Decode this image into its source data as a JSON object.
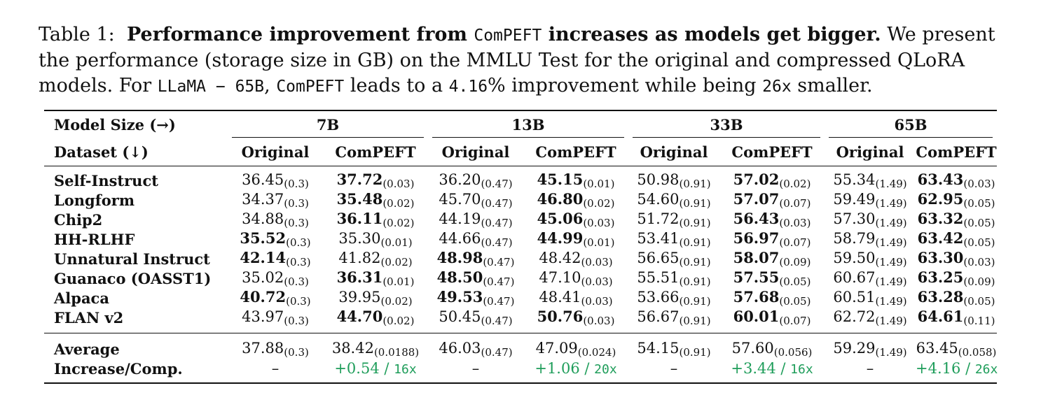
{
  "caption": {
    "label": "Table 1:",
    "title": "Performance improvement from",
    "title_mono": "ComPEFT",
    "title_end": "increases as models get bigger.",
    "body1": "We present the performance (storage size in GB) on the MMLU Test for the original and compressed QLoRA models. For",
    "model_mono": "LLaMA − 65B",
    "comma": ",",
    "compeft_mono": "ComPEFT",
    "body2": "leads to a",
    "pct_mono": "4.16",
    "pct_sign": "%",
    "body3": "improvement while being",
    "factor_mono": "26x",
    "body4": "smaller."
  },
  "header": {
    "model_size": "Model Size (→)",
    "dataset": "Dataset (↓)",
    "sizes": [
      "7B",
      "13B",
      "33B",
      "65B"
    ],
    "original": "Original",
    "compeft": "ComPEFT"
  },
  "rows": [
    {
      "name": "Self-Instruct",
      "cells": [
        {
          "v": "36.45",
          "s": "(0.3)",
          "b": false
        },
        {
          "v": "37.72",
          "s": "(0.03)",
          "b": true
        },
        {
          "v": "36.20",
          "s": "(0.47)",
          "b": false
        },
        {
          "v": "45.15",
          "s": "(0.01)",
          "b": true
        },
        {
          "v": "50.98",
          "s": "(0.91)",
          "b": false
        },
        {
          "v": "57.02",
          "s": "(0.02)",
          "b": true
        },
        {
          "v": "55.34",
          "s": "(1.49)",
          "b": false
        },
        {
          "v": "63.43",
          "s": "(0.03)",
          "b": true
        }
      ]
    },
    {
      "name": "Longform",
      "cells": [
        {
          "v": "34.37",
          "s": "(0.3)",
          "b": false
        },
        {
          "v": "35.48",
          "s": "(0.02)",
          "b": true
        },
        {
          "v": "45.70",
          "s": "(0.47)",
          "b": false
        },
        {
          "v": "46.80",
          "s": "(0.02)",
          "b": true
        },
        {
          "v": "54.60",
          "s": "(0.91)",
          "b": false
        },
        {
          "v": "57.07",
          "s": "(0.07)",
          "b": true
        },
        {
          "v": "59.49",
          "s": "(1.49)",
          "b": false
        },
        {
          "v": "62.95",
          "s": "(0.05)",
          "b": true
        }
      ]
    },
    {
      "name": "Chip2",
      "cells": [
        {
          "v": "34.88",
          "s": "(0.3)",
          "b": false
        },
        {
          "v": "36.11",
          "s": "(0.02)",
          "b": true
        },
        {
          "v": "44.19",
          "s": "(0.47)",
          "b": false
        },
        {
          "v": "45.06",
          "s": "(0.03)",
          "b": true
        },
        {
          "v": "51.72",
          "s": "(0.91)",
          "b": false
        },
        {
          "v": "56.43",
          "s": "(0.03)",
          "b": true
        },
        {
          "v": "57.30",
          "s": "(1.49)",
          "b": false
        },
        {
          "v": "63.32",
          "s": "(0.05)",
          "b": true
        }
      ]
    },
    {
      "name": "HH-RLHF",
      "cells": [
        {
          "v": "35.52",
          "s": "(0.3)",
          "b": true
        },
        {
          "v": "35.30",
          "s": "(0.01)",
          "b": false
        },
        {
          "v": "44.66",
          "s": "(0.47)",
          "b": false
        },
        {
          "v": "44.99",
          "s": "(0.01)",
          "b": true
        },
        {
          "v": "53.41",
          "s": "(0.91)",
          "b": false
        },
        {
          "v": "56.97",
          "s": "(0.07)",
          "b": true
        },
        {
          "v": "58.79",
          "s": "(1.49)",
          "b": false
        },
        {
          "v": "63.42",
          "s": "(0.05)",
          "b": true
        }
      ]
    },
    {
      "name": "Unnatural Instruct",
      "cells": [
        {
          "v": "42.14",
          "s": "(0.3)",
          "b": true
        },
        {
          "v": "41.82",
          "s": "(0.02)",
          "b": false
        },
        {
          "v": "48.98",
          "s": "(0.47)",
          "b": true
        },
        {
          "v": "48.42",
          "s": "(0.03)",
          "b": false
        },
        {
          "v": "56.65",
          "s": "(0.91)",
          "b": false
        },
        {
          "v": "58.07",
          "s": "(0.09)",
          "b": true
        },
        {
          "v": "59.50",
          "s": "(1.49)",
          "b": false
        },
        {
          "v": "63.30",
          "s": "(0.03)",
          "b": true
        }
      ]
    },
    {
      "name": "Guanaco (OASST1)",
      "cells": [
        {
          "v": "35.02",
          "s": "(0.3)",
          "b": false
        },
        {
          "v": "36.31",
          "s": "(0.01)",
          "b": true
        },
        {
          "v": "48.50",
          "s": "(0.47)",
          "b": true
        },
        {
          "v": "47.10",
          "s": "(0.03)",
          "b": false
        },
        {
          "v": "55.51",
          "s": "(0.91)",
          "b": false
        },
        {
          "v": "57.55",
          "s": "(0.05)",
          "b": true
        },
        {
          "v": "60.67",
          "s": "(1.49)",
          "b": false
        },
        {
          "v": "63.25",
          "s": "(0.09)",
          "b": true
        }
      ]
    },
    {
      "name": "Alpaca",
      "cells": [
        {
          "v": "40.72",
          "s": "(0.3)",
          "b": true
        },
        {
          "v": "39.95",
          "s": "(0.02)",
          "b": false
        },
        {
          "v": "49.53",
          "s": "(0.47)",
          "b": true
        },
        {
          "v": "48.41",
          "s": "(0.03)",
          "b": false
        },
        {
          "v": "53.66",
          "s": "(0.91)",
          "b": false
        },
        {
          "v": "57.68",
          "s": "(0.05)",
          "b": true
        },
        {
          "v": "60.51",
          "s": "(1.49)",
          "b": false
        },
        {
          "v": "63.28",
          "s": "(0.05)",
          "b": true
        }
      ]
    },
    {
      "name": "FLAN v2",
      "cells": [
        {
          "v": "43.97",
          "s": "(0.3)",
          "b": false
        },
        {
          "v": "44.70",
          "s": "(0.02)",
          "b": true
        },
        {
          "v": "50.45",
          "s": "(0.47)",
          "b": false
        },
        {
          "v": "50.76",
          "s": "(0.03)",
          "b": true
        },
        {
          "v": "56.67",
          "s": "(0.91)",
          "b": false
        },
        {
          "v": "60.01",
          "s": "(0.07)",
          "b": true
        },
        {
          "v": "62.72",
          "s": "(1.49)",
          "b": false
        },
        {
          "v": "64.61",
          "s": "(0.11)",
          "b": true
        }
      ]
    }
  ],
  "average": {
    "name": "Average",
    "cells": [
      {
        "v": "37.88",
        "s": "(0.3)"
      },
      {
        "v": "38.42",
        "s": "(0.0188)"
      },
      {
        "v": "46.03",
        "s": "(0.47)"
      },
      {
        "v": "47.09",
        "s": "(0.024)"
      },
      {
        "v": "54.15",
        "s": "(0.91)"
      },
      {
        "v": "57.60",
        "s": "(0.056)"
      },
      {
        "v": "59.29",
        "s": "(1.49)"
      },
      {
        "v": "63.45",
        "s": "(0.058)"
      }
    ]
  },
  "increase": {
    "name": "Increase/Comp.",
    "dash": "–",
    "sep": "/",
    "cells": [
      {
        "inc": "+0.54",
        "comp": "16x"
      },
      {
        "inc": "+1.06",
        "comp": "20x"
      },
      {
        "inc": "+3.44",
        "comp": "16x"
      },
      {
        "inc": "+4.16",
        "comp": "26x"
      }
    ]
  },
  "colors": {
    "increase_green": "#1e9d5a"
  }
}
